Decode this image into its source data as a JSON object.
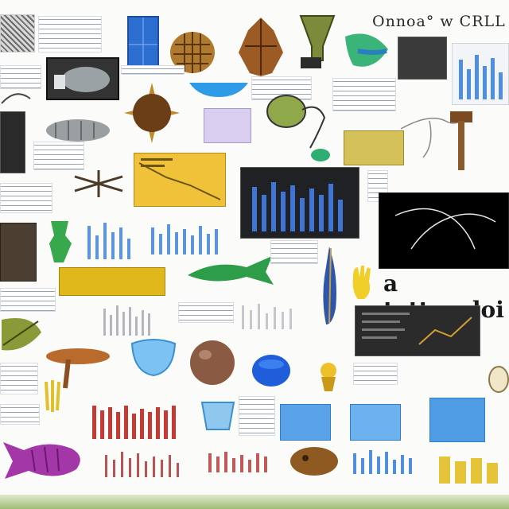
{
  "header": {
    "title": "Onnoa° w CRLL"
  },
  "caption": {
    "text": "a tottoocloi"
  }
}
